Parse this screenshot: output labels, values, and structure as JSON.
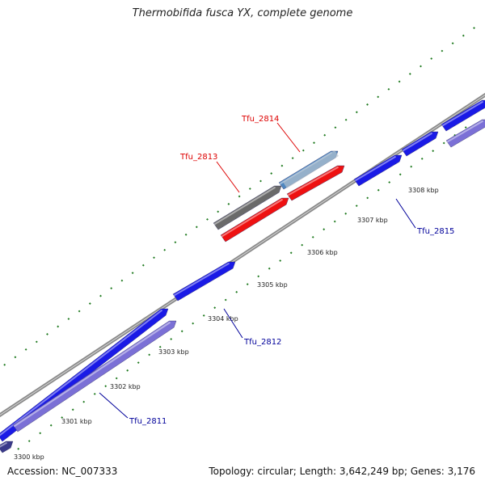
{
  "title": "Thermobifida fusca YX, complete genome",
  "footer": {
    "accession": "Accession: NC_007333",
    "summary": "Topology: circular; Length: 3,642,249 bp; Genes: 3,176"
  },
  "colors": {
    "background": "#ffffff",
    "backbone": "#8a8a8a",
    "gene_forward": "#1a1ae6",
    "gene_reverse": "#7b70d6",
    "highlight_red": "#ee1111",
    "highlight_gray": "#6a6a6a",
    "highlight_blue": "#4f86bf",
    "tick": "#1f7a1f",
    "label_red": "#dd0000",
    "label_blue": "#00009a"
  },
  "scale_ticks": [
    {
      "label": "3300 kbp"
    },
    {
      "label": "3301 kbp"
    },
    {
      "label": "3302 kbp"
    },
    {
      "label": "3303 kbp"
    },
    {
      "label": "3304 kbp"
    },
    {
      "label": "3305 kbp"
    },
    {
      "label": "3306 kbp"
    },
    {
      "label": "3307 kbp"
    },
    {
      "label": "3308 kbp"
    }
  ],
  "gene_labels": [
    {
      "text": "Tfu_2811",
      "color": "blue"
    },
    {
      "text": "Tfu_2812",
      "color": "blue"
    },
    {
      "text": "Tfu_2813",
      "color": "red"
    },
    {
      "text": "Tfu_2814",
      "color": "red"
    },
    {
      "text": "Tfu_2815",
      "color": "blue"
    }
  ]
}
